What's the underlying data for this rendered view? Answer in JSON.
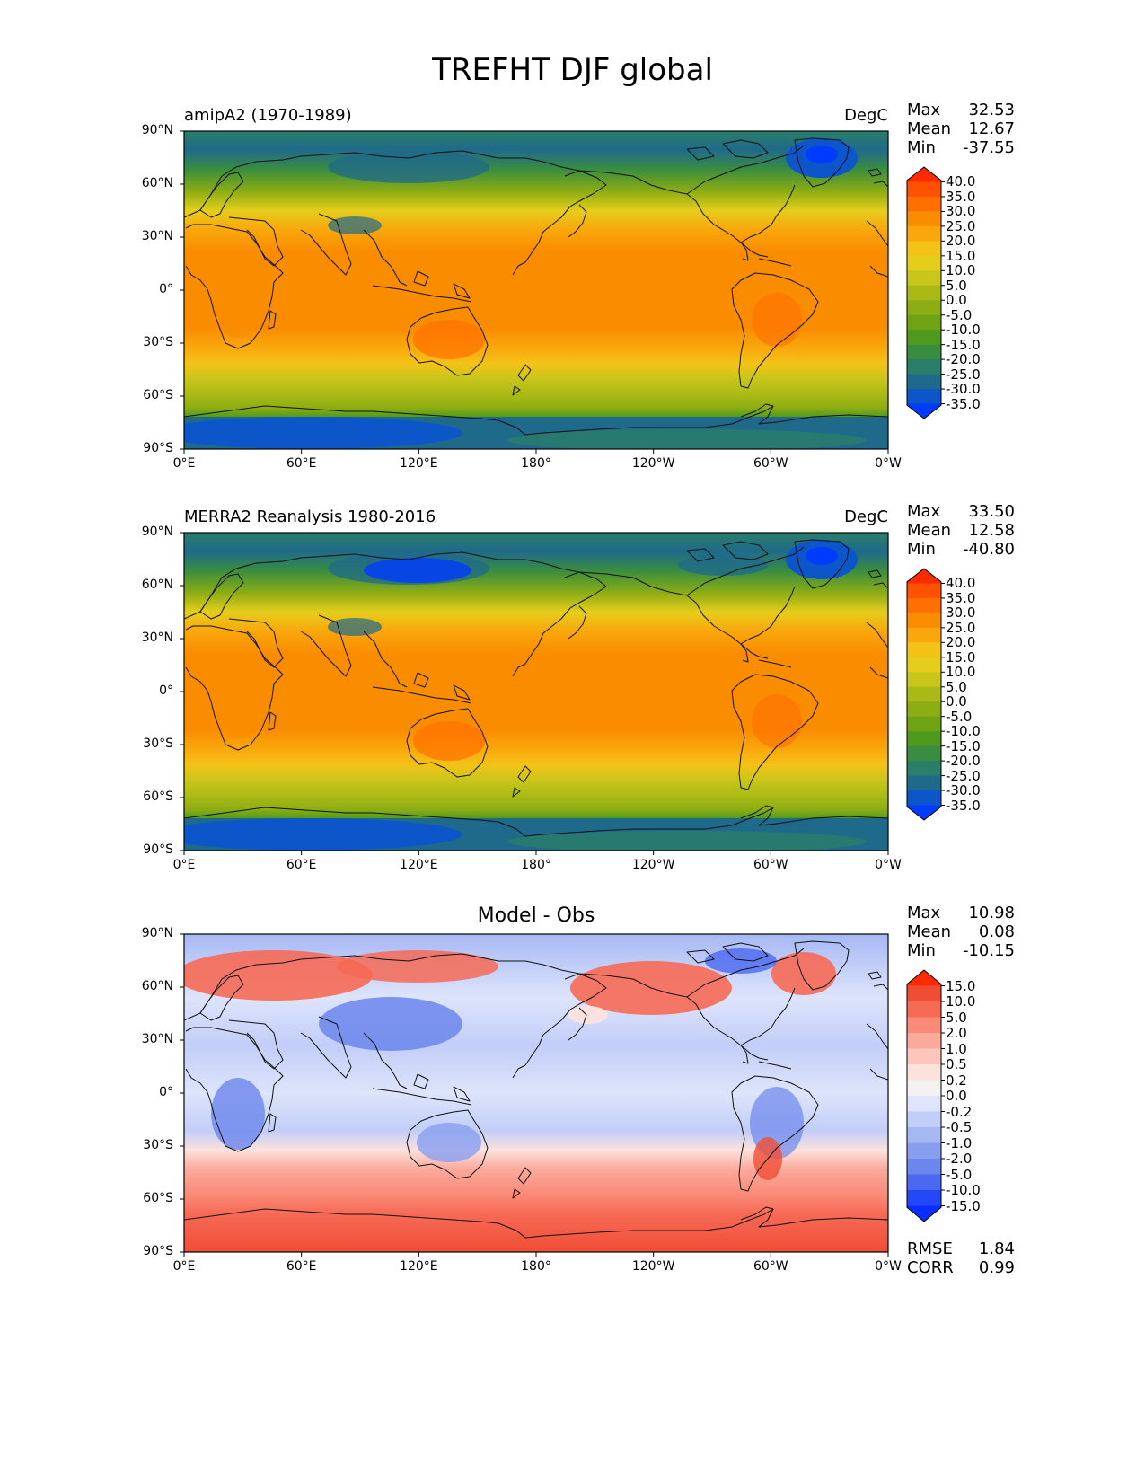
{
  "figure": {
    "title": "TREFHT DJF global"
  },
  "panels": [
    {
      "id": "test",
      "title_left": "amipA2 (1970-1989)",
      "title_right": "DegC",
      "title_center": "",
      "stats": [
        {
          "label": "Max",
          "value": "32.53"
        },
        {
          "label": "Mean",
          "value": "12.67"
        },
        {
          "label": "Min",
          "value": "-37.55"
        }
      ],
      "colorbar": {
        "labels": [
          "40.0",
          "35.0",
          "30.0",
          "25.0",
          "20.0",
          "15.0",
          "10.0",
          "5.0",
          "0.0",
          "-5.0",
          "-10.0",
          "-15.0",
          "-20.0",
          "-25.0",
          "-30.0",
          "-35.0"
        ],
        "colors": [
          "#ff2a00",
          "#ff5200",
          "#ff7000",
          "#fa8c00",
          "#f9a70c",
          "#f4c217",
          "#e5cd1c",
          "#c8c51b",
          "#a9ba16",
          "#8dad14",
          "#6ea313",
          "#4f9a1c",
          "#3a8d3f",
          "#2a7e6a",
          "#1f6a8b",
          "#0d56c9",
          "#003bff"
        ],
        "extend_colors": {
          "max": "#ff2a00",
          "min": "#003bff"
        }
      },
      "footer_stats": []
    },
    {
      "id": "reference",
      "title_left": "MERRA2 Reanalysis 1980-2016",
      "title_right": "DegC",
      "title_center": "",
      "stats": [
        {
          "label": "Max",
          "value": "33.50"
        },
        {
          "label": "Mean",
          "value": "12.58"
        },
        {
          "label": "Min",
          "value": "-40.80"
        }
      ],
      "colorbar": {
        "labels": [
          "40.0",
          "35.0",
          "30.0",
          "25.0",
          "20.0",
          "15.0",
          "10.0",
          "5.0",
          "0.0",
          "-5.0",
          "-10.0",
          "-15.0",
          "-20.0",
          "-25.0",
          "-30.0",
          "-35.0"
        ],
        "colors": [
          "#ff2a00",
          "#ff5200",
          "#ff7000",
          "#fa8c00",
          "#f9a70c",
          "#f4c217",
          "#e5cd1c",
          "#c8c51b",
          "#a9ba16",
          "#8dad14",
          "#6ea313",
          "#4f9a1c",
          "#3a8d3f",
          "#2a7e6a",
          "#1f6a8b",
          "#0d56c9",
          "#003bff"
        ],
        "extend_colors": {
          "max": "#ff2a00",
          "min": "#003bff"
        }
      },
      "footer_stats": []
    },
    {
      "id": "difference",
      "title_left": "",
      "title_right": "",
      "title_center": "Model - Obs",
      "stats": [
        {
          "label": "Max",
          "value": "10.98"
        },
        {
          "label": "Mean",
          "value": "0.08"
        },
        {
          "label": "Min",
          "value": "-10.15"
        }
      ],
      "colorbar": {
        "labels": [
          "15.0",
          "10.0",
          "5.0",
          "2.0",
          "1.0",
          "0.5",
          "0.2",
          "0.0",
          "-0.2",
          "-0.5",
          "-1.0",
          "-2.0",
          "-5.0",
          "-10.0",
          "-15.0"
        ],
        "colors": [
          "#ff3410",
          "#f04d36",
          "#f66a55",
          "#fa8a78",
          "#fba99b",
          "#fcc6bc",
          "#fde2dc",
          "#f4f1f1",
          "#dde4fb",
          "#c2cef8",
          "#a6b8f4",
          "#889ff0",
          "#6b86ec",
          "#4a68f0",
          "#2447f8",
          "#0a2eff"
        ],
        "extend_colors": {
          "max": "#ff2a00",
          "min": "#0a2eff"
        }
      },
      "footer_stats": [
        {
          "label": "RMSE",
          "value": "1.84"
        },
        {
          "label": "CORR",
          "value": "0.99"
        }
      ]
    }
  ],
  "axes": {
    "lat_ticks": [
      "90°N",
      "60°N",
      "30°N",
      "0°",
      "30°S",
      "60°S",
      "90°S"
    ],
    "lon_ticks": [
      "0°E",
      "60°E",
      "120°E",
      "180°",
      "120°W",
      "60°W",
      "0°W"
    ]
  }
}
